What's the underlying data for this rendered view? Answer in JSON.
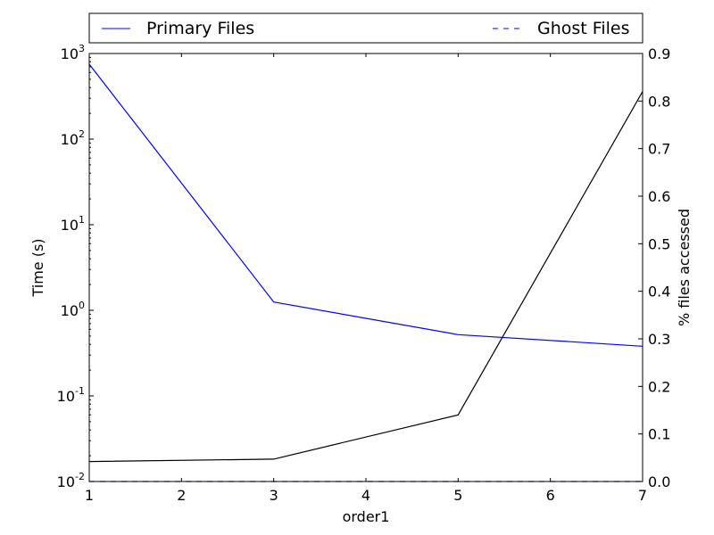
{
  "chart_data": {
    "type": "line",
    "xlabel": "order1",
    "ylabel_left": "Time (s)",
    "ylabel_right": "% files accessed",
    "x": [
      1,
      3,
      5,
      7
    ],
    "x_ticks": [
      1,
      2,
      3,
      4,
      5,
      6,
      7
    ],
    "xlim": [
      1,
      7
    ],
    "y_left_scale": "log",
    "y_left_lim": [
      0.01,
      1000
    ],
    "y_left_ticks": [
      {
        "value": 0.01,
        "base": "10",
        "exp": "-2"
      },
      {
        "value": 0.1,
        "base": "10",
        "exp": "-1"
      },
      {
        "value": 1,
        "base": "10",
        "exp": "0"
      },
      {
        "value": 10,
        "base": "10",
        "exp": "1"
      },
      {
        "value": 100,
        "base": "10",
        "exp": "2"
      },
      {
        "value": 1000,
        "base": "10",
        "exp": "3"
      }
    ],
    "y_right_lim": [
      0,
      0.9
    ],
    "y_right_ticks": [
      "0.0",
      "0.1",
      "0.2",
      "0.3",
      "0.4",
      "0.5",
      "0.6",
      "0.7",
      "0.8",
      "0.9"
    ],
    "legend_placement": "top, above plot",
    "series": [
      {
        "name": "Primary Files",
        "axis": "left",
        "color": "#0000ff",
        "style": "solid",
        "values": [
          750,
          1.25,
          0.52,
          0.38
        ]
      },
      {
        "name": "Ghost Files",
        "axis": "left",
        "color": "#0000ff",
        "style": "dashed",
        "values": [
          0.01,
          0.01,
          0.01,
          0.01
        ]
      },
      {
        "axis": "right",
        "color": "#000000",
        "style": "solid",
        "values": [
          0.042,
          0.047,
          0.14,
          0.82
        ]
      }
    ]
  }
}
